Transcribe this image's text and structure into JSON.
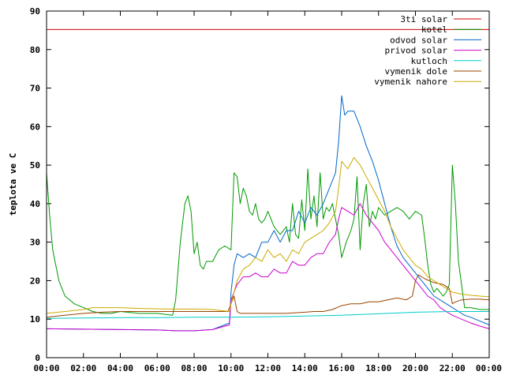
{
  "chart_data": {
    "type": "line",
    "title": "",
    "xlabel": "",
    "ylabel": "teplota ve C",
    "xlim": [
      "00:00",
      "24:00"
    ],
    "ylim": [
      0,
      90
    ],
    "x_ticks": [
      "00:00",
      "02:00",
      "04:00",
      "06:00",
      "08:00",
      "10:00",
      "12:00",
      "14:00",
      "16:00",
      "18:00",
      "20:00",
      "22:00",
      "00:00"
    ],
    "y_ticks": [
      0,
      10,
      20,
      30,
      40,
      50,
      60,
      70,
      80,
      90
    ],
    "grid": false,
    "legend_position": "top-right",
    "series": [
      {
        "name": "3ti solar",
        "color": "#cc0000",
        "x": [
          "00:00",
          "24:00"
        ],
        "y": [
          85.2,
          85.2
        ]
      },
      {
        "name": "kotel",
        "color": "#009900",
        "x": [
          "00:00",
          "00:10",
          "00:20",
          "00:40",
          "01:00",
          "01:30",
          "02:00",
          "02:30",
          "03:00",
          "03:30",
          "04:00",
          "05:00",
          "06:00",
          "06:50",
          "07:00",
          "07:15",
          "07:30",
          "07:40",
          "07:50",
          "08:00",
          "08:10",
          "08:20",
          "08:30",
          "08:40",
          "09:00",
          "09:20",
          "09:40",
          "10:00",
          "10:10",
          "10:20",
          "10:30",
          "10:40",
          "10:50",
          "11:00",
          "11:10",
          "11:20",
          "11:30",
          "11:40",
          "11:50",
          "12:00",
          "12:20",
          "12:40",
          "13:00",
          "13:10",
          "13:20",
          "13:30",
          "13:40",
          "13:50",
          "14:00",
          "14:10",
          "14:20",
          "14:30",
          "14:40",
          "14:50",
          "15:00",
          "15:10",
          "15:20",
          "15:30",
          "15:40",
          "15:50",
          "16:00",
          "16:15",
          "16:30",
          "16:40",
          "16:50",
          "17:00",
          "17:10",
          "17:20",
          "17:30",
          "17:40",
          "17:50",
          "18:00",
          "18:20",
          "18:40",
          "19:00",
          "19:20",
          "19:40",
          "20:00",
          "20:20",
          "20:30",
          "20:40",
          "20:50",
          "21:00",
          "21:10",
          "21:20",
          "21:30",
          "21:40",
          "21:50",
          "22:00",
          "22:10",
          "22:20",
          "22:40",
          "23:00",
          "23:30",
          "24:00"
        ],
        "y": [
          48,
          37,
          28,
          20,
          16,
          14,
          13,
          12,
          11.5,
          11.5,
          12,
          11.5,
          11.5,
          11,
          15,
          30,
          40,
          42,
          38,
          27,
          30,
          24,
          23,
          25,
          25,
          28,
          29,
          28,
          48,
          47,
          40,
          44,
          42,
          38,
          37,
          40,
          36,
          35,
          36,
          38,
          34,
          32,
          34,
          30,
          40,
          32,
          31,
          41,
          33,
          49,
          36,
          42,
          34,
          48,
          36,
          39,
          38,
          40,
          36,
          32,
          26,
          30,
          33,
          36,
          47,
          28,
          40,
          45,
          34,
          38,
          36,
          39,
          37,
          38,
          39,
          38,
          36,
          38,
          37,
          31,
          24,
          19,
          17,
          18,
          17,
          16,
          17,
          19,
          50,
          40,
          25,
          13,
          13,
          12.5,
          12.5
        ]
      },
      {
        "name": "odvod solar",
        "color": "#0066cc",
        "x": [
          "00:00",
          "02:00",
          "04:00",
          "06:00",
          "07:00",
          "08:00",
          "09:00",
          "09:55",
          "10:00",
          "10:10",
          "10:20",
          "10:40",
          "11:00",
          "11:20",
          "11:40",
          "12:00",
          "12:20",
          "12:40",
          "13:00",
          "13:20",
          "13:40",
          "14:00",
          "14:20",
          "14:40",
          "15:00",
          "15:20",
          "15:40",
          "15:50",
          "16:00",
          "16:10",
          "16:20",
          "16:40",
          "17:00",
          "17:20",
          "17:40",
          "18:00",
          "18:20",
          "18:40",
          "19:00",
          "19:20",
          "19:40",
          "20:00",
          "20:20",
          "20:40",
          "21:00",
          "21:20",
          "21:40",
          "22:00",
          "22:20",
          "22:40",
          "23:00",
          "23:30",
          "24:00"
        ],
        "y": [
          7.5,
          7.4,
          7.3,
          7.2,
          7.0,
          7.0,
          7.3,
          9,
          17,
          24,
          27,
          26,
          27,
          26,
          30,
          30,
          33,
          30,
          33,
          33,
          38,
          35,
          39,
          37,
          40,
          44,
          48,
          56,
          68,
          63,
          64,
          64,
          60,
          55,
          51,
          46,
          40,
          34,
          29,
          26,
          24,
          22,
          20,
          18,
          16,
          15,
          14,
          13,
          12,
          11,
          10.5,
          9.5,
          8.5
        ]
      },
      {
        "name": "privod solar",
        "color": "#cc00cc",
        "x": [
          "00:00",
          "02:00",
          "04:00",
          "06:00",
          "07:00",
          "08:00",
          "09:00",
          "09:55",
          "10:00",
          "10:20",
          "10:40",
          "11:00",
          "11:20",
          "11:40",
          "12:00",
          "12:20",
          "12:40",
          "13:00",
          "13:20",
          "13:40",
          "14:00",
          "14:20",
          "14:40",
          "15:00",
          "15:20",
          "15:40",
          "15:50",
          "16:00",
          "16:20",
          "16:40",
          "17:00",
          "17:20",
          "17:40",
          "18:00",
          "18:20",
          "18:40",
          "19:00",
          "19:20",
          "19:40",
          "20:00",
          "20:20",
          "20:40",
          "21:00",
          "21:20",
          "21:40",
          "22:00",
          "22:30",
          "23:00",
          "23:30",
          "24:00"
        ],
        "y": [
          7.5,
          7.4,
          7.3,
          7.2,
          7.0,
          7.0,
          7.3,
          8.5,
          15,
          19,
          21,
          21,
          22,
          21,
          21,
          23,
          22,
          22,
          25,
          24,
          24,
          26,
          27,
          27,
          30,
          32,
          36,
          39,
          38,
          37,
          40,
          37,
          35,
          33,
          30,
          28,
          26,
          24,
          22,
          20,
          18,
          16,
          15,
          13,
          12,
          11,
          10,
          9,
          8.2,
          7.5
        ]
      },
      {
        "name": "kutloch",
        "color": "#00cccc",
        "x": [
          "00:00",
          "02:00",
          "04:00",
          "06:00",
          "08:00",
          "10:00",
          "12:00",
          "14:00",
          "16:00",
          "18:00",
          "20:00",
          "22:00",
          "24:00"
        ],
        "y": [
          10.2,
          10.3,
          10.4,
          10.4,
          10.5,
          10.5,
          10.6,
          10.8,
          11.0,
          11.4,
          11.8,
          12.0,
          12.0
        ]
      },
      {
        "name": "vymenik dole",
        "color": "#994400",
        "x": [
          "00:00",
          "01:00",
          "02:00",
          "03:00",
          "04:00",
          "05:00",
          "06:00",
          "07:00",
          "08:00",
          "09:00",
          "09:50",
          "10:00",
          "10:10",
          "10:20",
          "10:30",
          "11:00",
          "12:00",
          "13:00",
          "14:00",
          "14:30",
          "15:00",
          "15:30",
          "16:00",
          "16:30",
          "17:00",
          "17:30",
          "18:00",
          "18:30",
          "19:00",
          "19:30",
          "19:50",
          "20:00",
          "20:10",
          "20:30",
          "21:00",
          "21:30",
          "21:50",
          "22:00",
          "22:10",
          "22:30",
          "23:00",
          "23:30",
          "24:00"
        ],
        "y": [
          10.5,
          11,
          11.5,
          11.8,
          12,
          12,
          12,
          12,
          12,
          12,
          12,
          14,
          16,
          12,
          11.5,
          11.5,
          11.5,
          11.5,
          11.8,
          12,
          12,
          12.5,
          13.5,
          14,
          14,
          14.5,
          14.5,
          15,
          15.5,
          15,
          16,
          20,
          21.5,
          20.5,
          19.5,
          19,
          18,
          14,
          14.5,
          15,
          15.2,
          15.2,
          15
        ]
      },
      {
        "name": "vymenik nahore",
        "color": "#ccaa00",
        "x": [
          "00:00",
          "01:00",
          "02:00",
          "02:30",
          "03:00",
          "04:00",
          "05:00",
          "06:00",
          "07:00",
          "08:00",
          "09:00",
          "09:55",
          "10:00",
          "10:20",
          "10:40",
          "11:00",
          "11:20",
          "11:40",
          "12:00",
          "12:20",
          "12:40",
          "13:00",
          "13:20",
          "13:40",
          "14:00",
          "14:20",
          "14:40",
          "15:00",
          "15:20",
          "15:40",
          "15:50",
          "16:00",
          "16:20",
          "16:40",
          "17:00",
          "17:20",
          "17:40",
          "18:00",
          "18:20",
          "18:40",
          "19:00",
          "19:20",
          "19:40",
          "20:00",
          "20:20",
          "20:40",
          "21:00",
          "21:20",
          "21:40",
          "22:00",
          "22:30",
          "23:00",
          "23:30",
          "24:00"
        ],
        "y": [
          11.5,
          12,
          12.5,
          13,
          13,
          13,
          12.8,
          12.7,
          12.6,
          12.6,
          12.5,
          12,
          14,
          20,
          23,
          24,
          26,
          25,
          28,
          26,
          27,
          25,
          28,
          27,
          30,
          31,
          32,
          33,
          35,
          38,
          44,
          51,
          49,
          52,
          50,
          47,
          44,
          41,
          38,
          34,
          31,
          28,
          26,
          24,
          23,
          21,
          20,
          19,
          18,
          17,
          16.5,
          16.2,
          16,
          15.8
        ]
      }
    ]
  }
}
